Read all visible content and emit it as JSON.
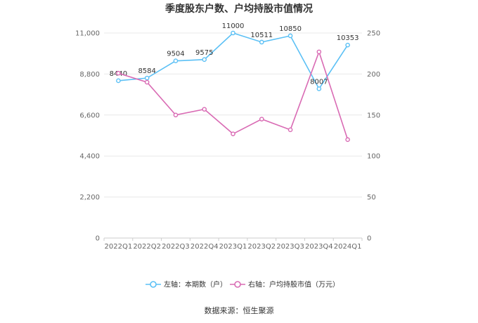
{
  "chart_data": {
    "type": "line",
    "title": "季度股东户数、户均持股市值情况",
    "categories": [
      "2022Q1",
      "2022Q2",
      "2022Q3",
      "2022Q4",
      "2023Q1",
      "2023Q2",
      "2023Q3",
      "2023Q4",
      "2024Q1"
    ],
    "series": [
      {
        "name": "左轴：本期数（户）",
        "axis": "left",
        "color": "#5bc0f5",
        "values": [
          8440,
          8584,
          9504,
          9575,
          11000,
          10511,
          10850,
          8007,
          10353
        ],
        "labels": [
          "8440",
          "8584",
          "9504",
          "9575",
          "11000",
          "10511",
          "10850",
          "8007",
          "10353"
        ]
      },
      {
        "name": "右轴：户均持股市值（万元）",
        "axis": "right",
        "color": "#d96bb4",
        "values": [
          201,
          190,
          150,
          157,
          127,
          145,
          132,
          227,
          120
        ]
      }
    ],
    "y_left": {
      "min": 0,
      "max": 11000,
      "ticks": [
        "0",
        "2,200",
        "4,400",
        "6,600",
        "8,800",
        "11,000"
      ]
    },
    "y_right": {
      "min": 0,
      "max": 250,
      "ticks": [
        "0",
        "50",
        "100",
        "150",
        "200",
        "250"
      ]
    },
    "grid": true,
    "legend_position": "bottom"
  },
  "source": "数据来源：恒生聚源"
}
